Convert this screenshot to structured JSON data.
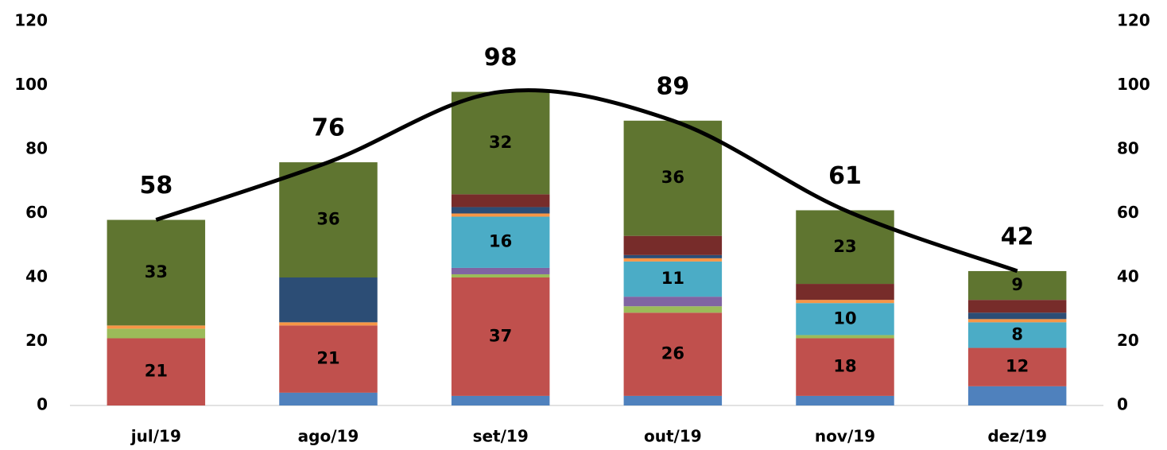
{
  "chart_data": {
    "type": "bar",
    "stacked": true,
    "categories": [
      "jul/19",
      "ago/19",
      "set/19",
      "out/19",
      "nov/19",
      "dez/19"
    ],
    "series": [
      {
        "color": "#4f81bd",
        "values": [
          0,
          4,
          3,
          3,
          3,
          6
        ]
      },
      {
        "color": "#c0504d",
        "values": [
          21,
          21,
          37,
          26,
          18,
          12
        ],
        "data_labels": true
      },
      {
        "color": "#9bbb59",
        "values": [
          3,
          0,
          1,
          2,
          1,
          0
        ]
      },
      {
        "color": "#8064a2",
        "values": [
          0,
          0,
          2,
          3,
          0,
          0
        ]
      },
      {
        "color": "#4bacc6",
        "values": [
          0,
          0,
          16,
          11,
          10,
          8
        ],
        "data_labels": true
      },
      {
        "color": "#f79646",
        "values": [
          1,
          1,
          1,
          1,
          1,
          1
        ]
      },
      {
        "color": "#2c4d75",
        "values": [
          0,
          14,
          2,
          1,
          0,
          2
        ]
      },
      {
        "color": "#772c2a",
        "values": [
          0,
          0,
          4,
          6,
          5,
          4
        ]
      },
      {
        "color": "#5f7530",
        "values": [
          33,
          36,
          32,
          36,
          23,
          9
        ],
        "data_labels": true
      },
      {
        "type": "line",
        "axis": "y2",
        "color": "#000000",
        "smooth": true,
        "values": [
          58,
          76,
          98,
          89,
          61,
          42
        ],
        "data_labels": true
      }
    ],
    "ylim": [
      0,
      120
    ],
    "yticks": [
      0,
      20,
      40,
      60,
      80,
      100,
      120
    ],
    "y2lim": [
      0,
      120
    ],
    "y2ticks": [
      0,
      20,
      40,
      60,
      80,
      100,
      120
    ],
    "grid": false
  }
}
